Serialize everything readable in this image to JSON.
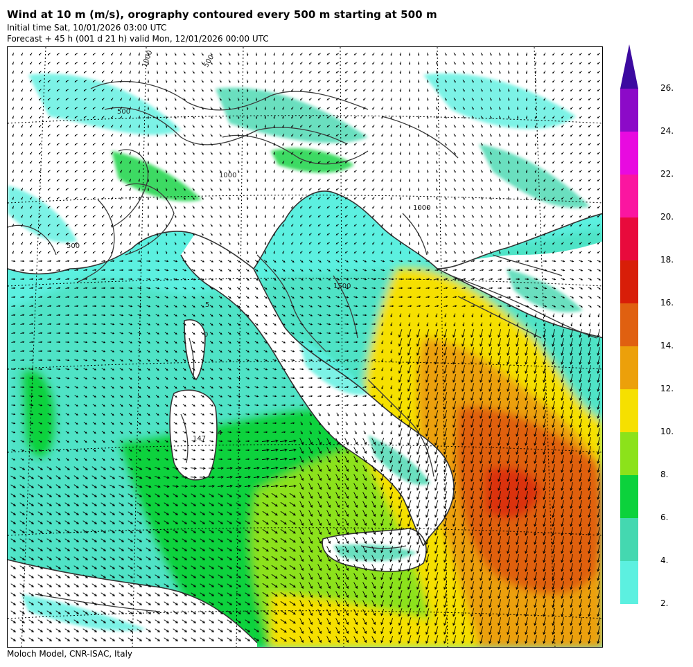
{
  "header": {
    "title": "Wind at 10 m (m/s), orography contoured every 500 m starting at 500 m",
    "initial_time": "Initial time  Sat, 10/01/2026  03:00 UTC",
    "forecast": "Forecast  +  45 h  (001 d 21 h)  valid Mon, 12/01/2026 00:00 UTC"
  },
  "footer": {
    "credit": "Moloch Model, CNR-ISAC, Italy"
  },
  "legend": {
    "unit": "m/s",
    "levels": [
      {
        "value": 2,
        "label": "2.",
        "color": "#5cf0e0"
      },
      {
        "value": 4,
        "label": "4.",
        "color": "#44d8b0"
      },
      {
        "value": 6,
        "label": "6.",
        "color": "#0cd23c"
      },
      {
        "value": 8,
        "label": "8.",
        "color": "#8ce21a"
      },
      {
        "value": 10,
        "label": "10.",
        "color": "#f6e000"
      },
      {
        "value": 12,
        "label": "12.",
        "color": "#eca00a"
      },
      {
        "value": 14,
        "label": "14.",
        "color": "#e06010"
      },
      {
        "value": 16,
        "label": "16.",
        "color": "#d81e08"
      },
      {
        "value": 18,
        "label": "18.",
        "color": "#e80a3c"
      },
      {
        "value": 20,
        "label": "20.",
        "color": "#fa16a0"
      },
      {
        "value": 22,
        "label": "22.",
        "color": "#e80ae0"
      },
      {
        "value": 24,
        "label": "24.",
        "color": "#8c0ac8"
      },
      {
        "value": 26,
        "label": "26.",
        "color": "#3c0aa0"
      }
    ]
  },
  "map": {
    "contour_labels": [
      "1000",
      "500",
      "500",
      "1000",
      "1500",
      "5",
      "0",
      "147",
      "4",
      "500",
      "1000"
    ],
    "colors": {
      "sea": "#5cf0e0",
      "land": "#ffffff",
      "coast": "#333333",
      "arrow": "#000000",
      "graticule": "#000000"
    }
  }
}
